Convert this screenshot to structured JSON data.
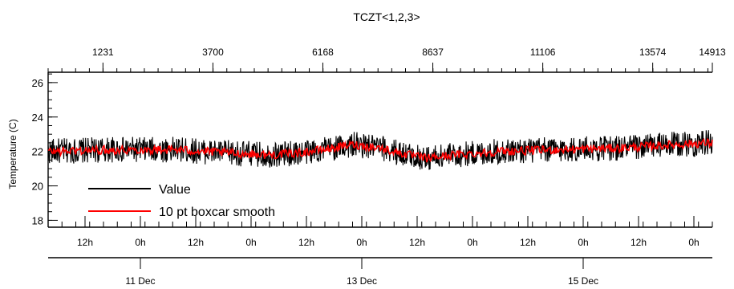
{
  "chart_data": {
    "type": "line",
    "title": "TCZT<1,2,3>",
    "ylabel": "Temperature (C)",
    "ylim": [
      17.6,
      26.6
    ],
    "y_ticks": [
      18,
      20,
      22,
      24,
      26
    ],
    "top_axis": {
      "ticks": [
        {
          "label": "1231",
          "value": 1231
        },
        {
          "label": "3700",
          "value": 3700
        },
        {
          "label": "6168",
          "value": 6168
        },
        {
          "label": "8637",
          "value": 8637
        },
        {
          "label": "11106",
          "value": 11106
        },
        {
          "label": "13574",
          "value": 13574
        },
        {
          "label": "14913",
          "value": 14913
        }
      ],
      "range": [
        0,
        14913
      ]
    },
    "time_axis": {
      "range": [
        "2007-12-10T04:00",
        "2007-12-16T04:00"
      ],
      "hour_labels": [
        {
          "t": "2007-12-10T12:00",
          "label": "12h"
        },
        {
          "t": "2007-12-11T00:00",
          "label": "0h"
        },
        {
          "t": "2007-12-11T12:00",
          "label": "12h"
        },
        {
          "t": "2007-12-12T00:00",
          "label": "0h"
        },
        {
          "t": "2007-12-12T12:00",
          "label": "12h"
        },
        {
          "t": "2007-12-13T00:00",
          "label": "0h"
        },
        {
          "t": "2007-12-13T12:00",
          "label": "12h"
        },
        {
          "t": "2007-12-14T00:00",
          "label": "0h"
        },
        {
          "t": "2007-12-14T12:00",
          "label": "12h"
        },
        {
          "t": "2007-12-15T00:00",
          "label": "0h"
        },
        {
          "t": "2007-12-15T12:00",
          "label": "12h"
        },
        {
          "t": "2007-12-16T00:00",
          "label": "0h"
        }
      ],
      "day_labels": [
        {
          "t": "2007-12-11T00:00",
          "label": "11 Dec"
        },
        {
          "t": "2007-12-13T00:00",
          "label": "13 Dec"
        },
        {
          "t": "2007-12-15T00:00",
          "label": "15 Dec"
        }
      ]
    },
    "series": [
      {
        "name": "Value",
        "color": "#000000",
        "noise": 0.75,
        "points": [
          [
            "2007-12-10T04:00",
            22.0
          ],
          [
            "2007-12-10T18:00",
            22.1
          ],
          [
            "2007-12-11T08:00",
            22.1
          ],
          [
            "2007-12-11T20:00",
            21.9
          ],
          [
            "2007-12-12T04:00",
            21.8
          ],
          [
            "2007-12-12T10:00",
            21.9
          ],
          [
            "2007-12-12T18:00",
            22.2
          ],
          [
            "2007-12-12T22:00",
            22.4
          ],
          [
            "2007-12-13T04:00",
            22.2
          ],
          [
            "2007-12-13T10:00",
            21.8
          ],
          [
            "2007-12-13T14:00",
            21.6
          ],
          [
            "2007-12-13T20:00",
            21.8
          ],
          [
            "2007-12-14T06:00",
            22.0
          ],
          [
            "2007-12-14T18:00",
            22.1
          ],
          [
            "2007-12-15T08:00",
            22.2
          ],
          [
            "2007-12-15T20:00",
            22.4
          ],
          [
            "2007-12-16T04:00",
            22.5
          ]
        ]
      },
      {
        "name": "10 pt boxcar smooth",
        "color": "#ff0000",
        "noise": 0.25,
        "points": [
          [
            "2007-12-10T04:00",
            22.0
          ],
          [
            "2007-12-10T18:00",
            22.1
          ],
          [
            "2007-12-11T08:00",
            22.1
          ],
          [
            "2007-12-11T20:00",
            21.9
          ],
          [
            "2007-12-12T04:00",
            21.8
          ],
          [
            "2007-12-12T10:00",
            21.9
          ],
          [
            "2007-12-12T18:00",
            22.2
          ],
          [
            "2007-12-12T22:00",
            22.4
          ],
          [
            "2007-12-13T04:00",
            22.2
          ],
          [
            "2007-12-13T10:00",
            21.8
          ],
          [
            "2007-12-13T14:00",
            21.6
          ],
          [
            "2007-12-13T20:00",
            21.8
          ],
          [
            "2007-12-14T06:00",
            22.0
          ],
          [
            "2007-12-14T18:00",
            22.1
          ],
          [
            "2007-12-15T08:00",
            22.2
          ],
          [
            "2007-12-15T20:00",
            22.4
          ],
          [
            "2007-12-16T04:00",
            22.5
          ]
        ]
      }
    ],
    "legend": "bottom-left"
  }
}
